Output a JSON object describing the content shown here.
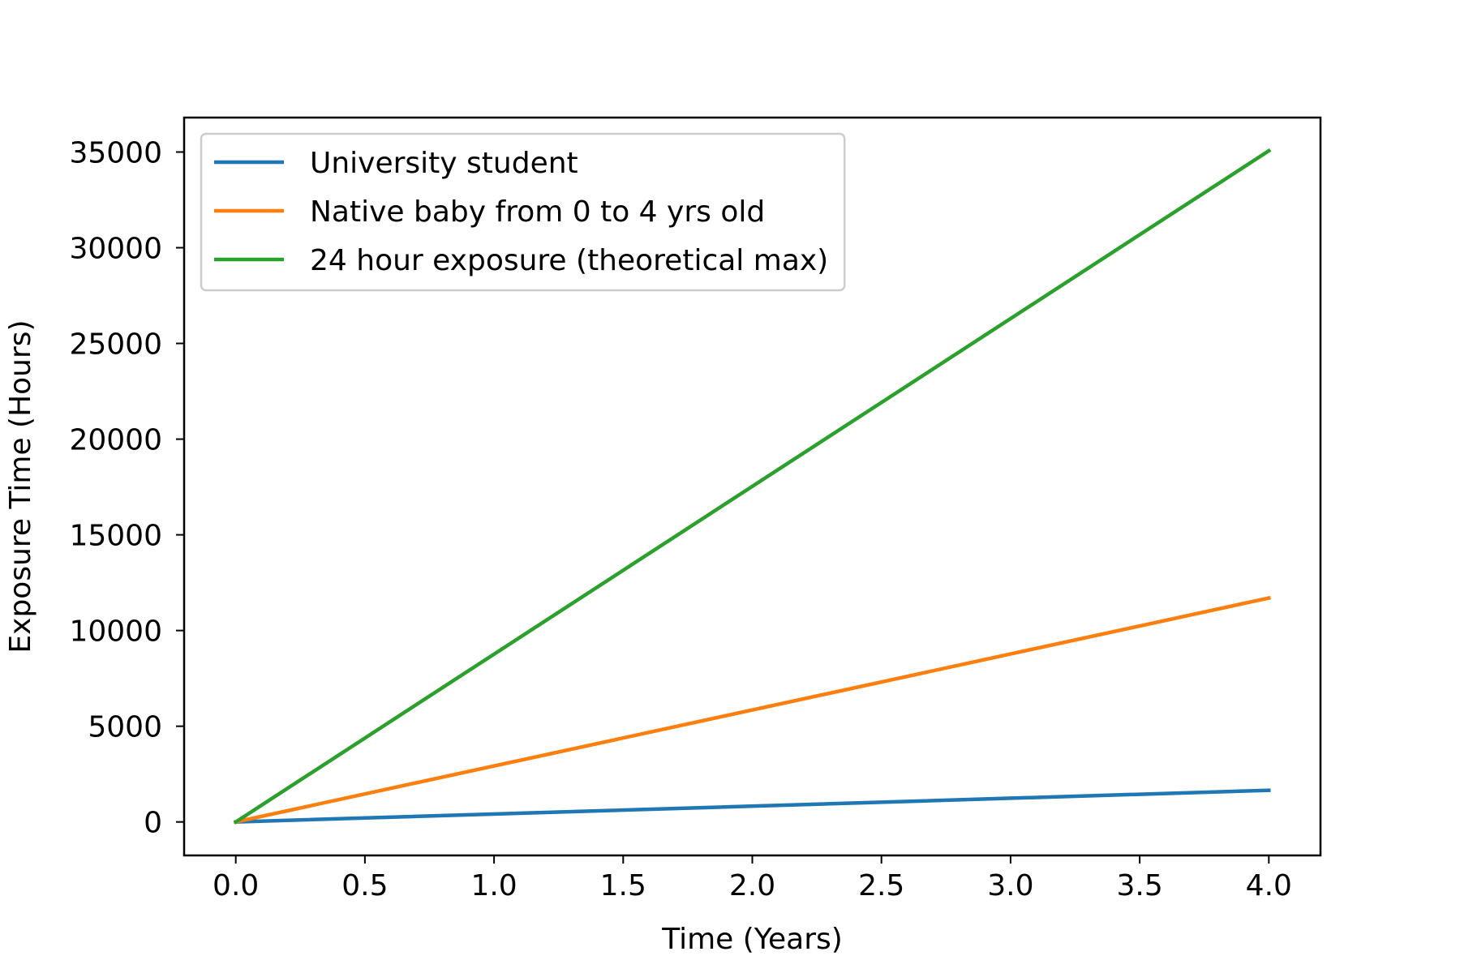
{
  "chart_data": {
    "type": "line",
    "title": "",
    "xlabel": "Time (Years)",
    "ylabel": "Exposure Time (Hours)",
    "xlim": [
      -0.2,
      4.2
    ],
    "ylim": [
      -1750,
      36800
    ],
    "x_ticks": [
      0.0,
      0.5,
      1.0,
      1.5,
      2.0,
      2.5,
      3.0,
      3.5,
      4.0
    ],
    "x_tick_labels": [
      "0.0",
      "0.5",
      "1.0",
      "1.5",
      "2.0",
      "2.5",
      "3.0",
      "3.5",
      "4.0"
    ],
    "y_ticks": [
      0,
      5000,
      10000,
      15000,
      20000,
      25000,
      30000,
      35000
    ],
    "y_tick_labels": [
      "0",
      "5000",
      "10000",
      "15000",
      "20000",
      "25000",
      "30000",
      "35000"
    ],
    "grid": false,
    "legend_position": "top-left",
    "x": [
      0,
      4
    ],
    "series": [
      {
        "name": "University student",
        "color": "#1f77b4",
        "values": [
          0,
          1650
        ]
      },
      {
        "name": "Native baby from 0 to 4 yrs old",
        "color": "#ff7f0e",
        "values": [
          0,
          11700
        ]
      },
      {
        "name": "24 hour exposure (theoretical max)",
        "color": "#2ca02c",
        "values": [
          0,
          35064
        ]
      }
    ]
  }
}
